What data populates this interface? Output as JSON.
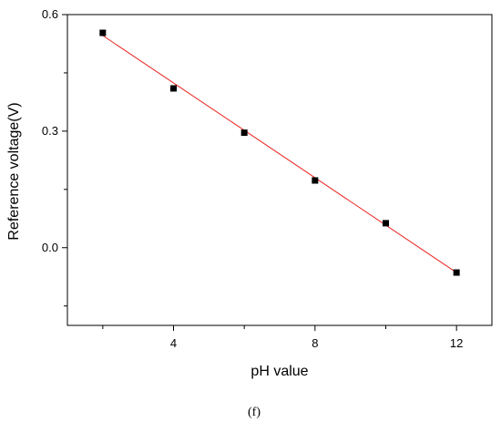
{
  "chart_data": {
    "type": "scatter",
    "title": "",
    "xlabel": "pH value",
    "ylabel": "Reference voltage(V)",
    "xlim": [
      1.0,
      13.0
    ],
    "ylim": [
      -0.2,
      0.6
    ],
    "x_ticks": [
      4,
      8,
      12
    ],
    "x_tick_labels": [
      "4",
      "8",
      "12"
    ],
    "x_minor_ticks": [
      2,
      6,
      10
    ],
    "y_ticks": [
      0.0,
      0.3,
      0.6
    ],
    "y_tick_labels": [
      "0.0",
      "0.3",
      "0.6"
    ],
    "y_minor_ticks": [
      -0.15,
      0.15,
      0.45
    ],
    "grid": false,
    "series": [
      {
        "x": [
          2,
          4,
          6,
          8,
          10,
          12
        ],
        "y": [
          0.553,
          0.41,
          0.296,
          0.173,
          0.063,
          -0.064
        ],
        "marker": "square",
        "color": "#000000"
      }
    ],
    "fit_line": {
      "x": [
        2,
        12
      ],
      "y": [
        0.546,
        -0.064
      ],
      "color": "#e8231f"
    }
  },
  "caption": "(f)"
}
